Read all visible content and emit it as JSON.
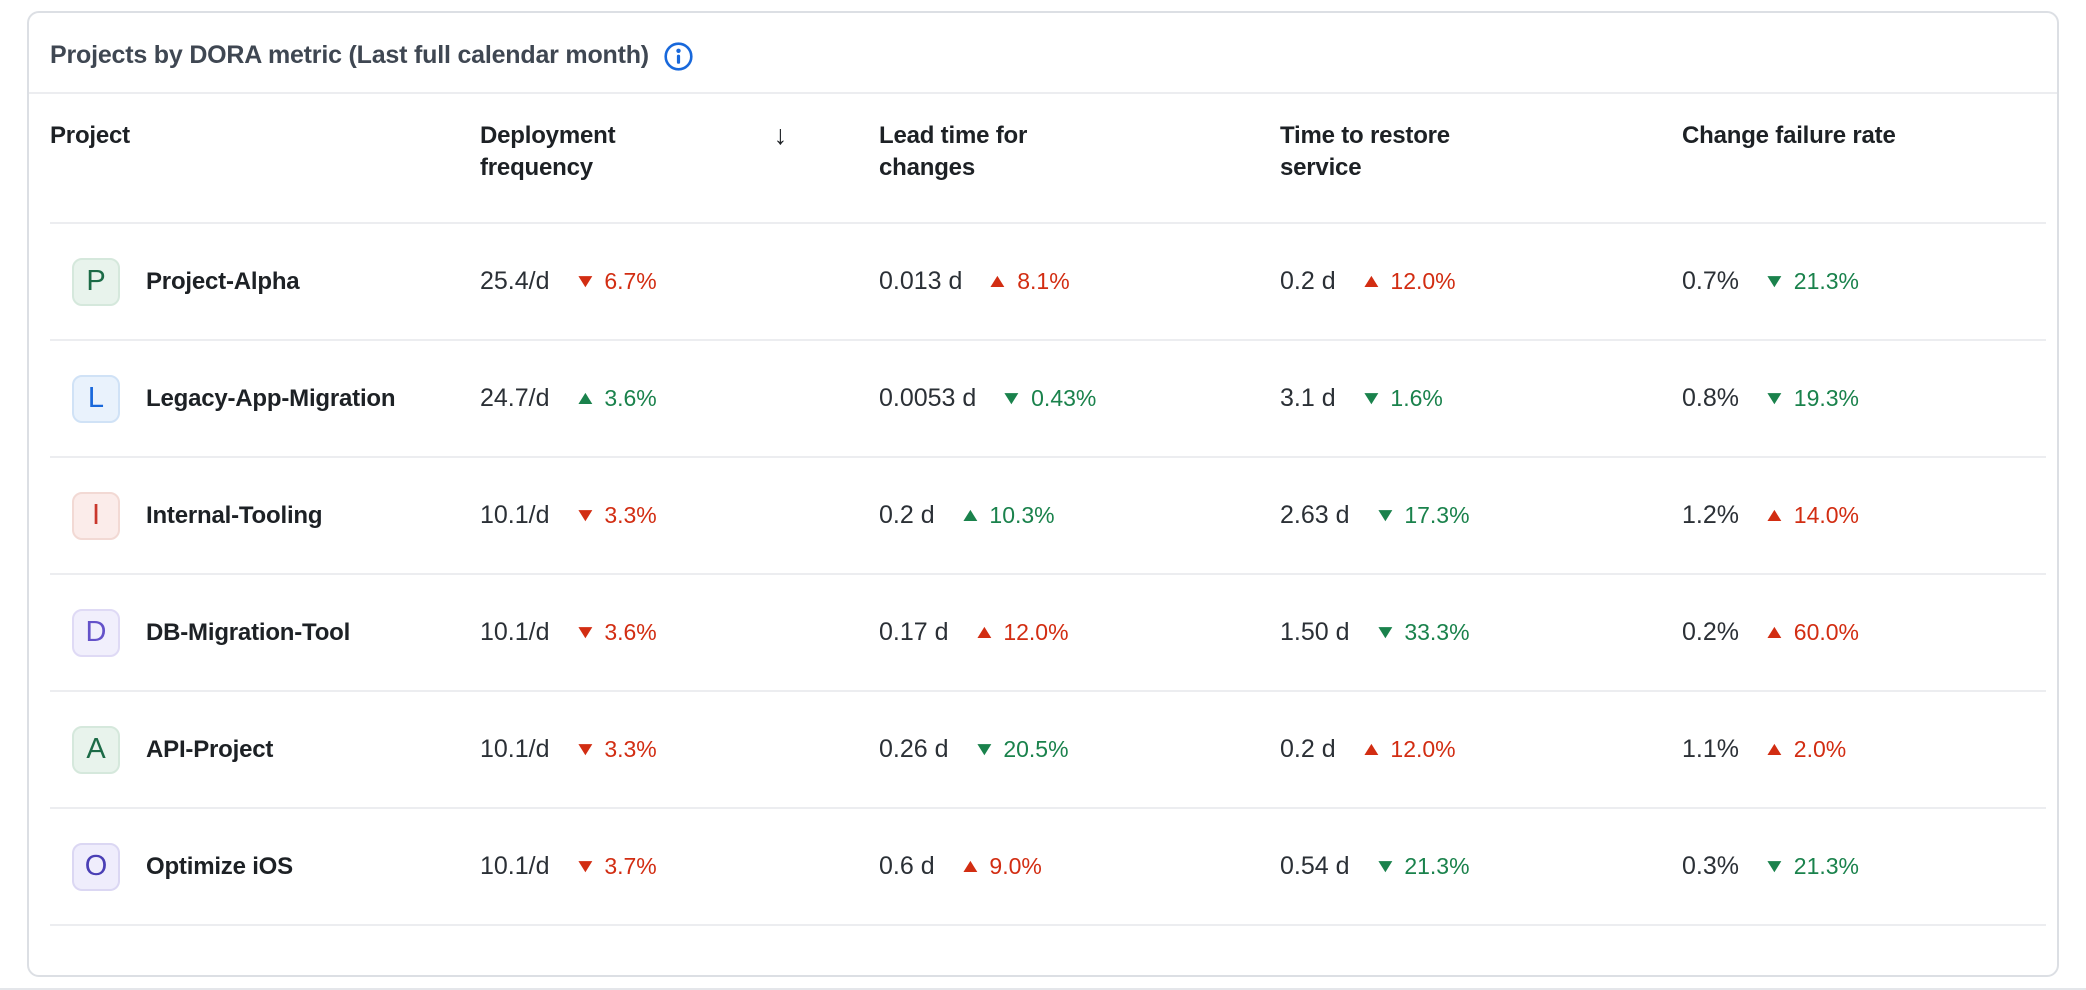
{
  "card": {
    "title": "Projects by DORA metric (Last full calendar month)"
  },
  "colors": {
    "positive": "#1A824C",
    "negative": "#D22D12",
    "info_icon": "#1868DB"
  },
  "table": {
    "sort_icon": "↓",
    "columns": [
      {
        "id": "project",
        "label": "Project"
      },
      {
        "id": "deployment_frequency",
        "label": "Deployment frequency",
        "sort": "desc"
      },
      {
        "id": "lead_time_for_changes",
        "label": "Lead time for changes"
      },
      {
        "id": "time_to_restore_service",
        "label": "Time to restore service"
      },
      {
        "id": "change_failure_rate",
        "label": "Change failure rate"
      }
    ],
    "rows": [
      {
        "project": {
          "initial": "P",
          "name": "Project-Alpha",
          "badge": {
            "bg": "#E8F3EC",
            "border": "#D5E8DC",
            "text": "#1C6B47"
          }
        },
        "metrics": [
          {
            "value": "25.4/d",
            "trend": "down",
            "delta": "6.7%",
            "sentiment": "negative"
          },
          {
            "value": "0.013 d",
            "trend": "up",
            "delta": "8.1%",
            "sentiment": "negative"
          },
          {
            "value": "0.2 d",
            "trend": "up",
            "delta": "12.0%",
            "sentiment": "negative"
          },
          {
            "value": "0.7%",
            "trend": "down",
            "delta": "21.3%",
            "sentiment": "positive"
          }
        ]
      },
      {
        "project": {
          "initial": "L",
          "name": "Legacy-App-Migration",
          "badge": {
            "bg": "#E9F2FC",
            "border": "#D0E2F6",
            "text": "#1868DB"
          }
        },
        "metrics": [
          {
            "value": "24.7/d",
            "trend": "up",
            "delta": "3.6%",
            "sentiment": "positive"
          },
          {
            "value": "0.0053 d",
            "trend": "down",
            "delta": "0.43%",
            "sentiment": "positive"
          },
          {
            "value": "3.1 d",
            "trend": "down",
            "delta": "1.6%",
            "sentiment": "positive"
          },
          {
            "value": "0.8%",
            "trend": "down",
            "delta": "19.3%",
            "sentiment": "positive"
          }
        ]
      },
      {
        "project": {
          "initial": "I",
          "name": "Internal-Tooling",
          "badge": {
            "bg": "#FBECEA",
            "border": "#F2D9D4",
            "text": "#C9372C"
          }
        },
        "metrics": [
          {
            "value": "10.1/d",
            "trend": "down",
            "delta": "3.3%",
            "sentiment": "negative"
          },
          {
            "value": "0.2 d",
            "trend": "up",
            "delta": "10.3%",
            "sentiment": "positive"
          },
          {
            "value": "2.63 d",
            "trend": "down",
            "delta": "17.3%",
            "sentiment": "positive"
          },
          {
            "value": "1.2%",
            "trend": "up",
            "delta": "14.0%",
            "sentiment": "negative"
          }
        ]
      },
      {
        "project": {
          "initial": "D",
          "name": "DB-Migration-Tool",
          "badge": {
            "bg": "#F1EFFC",
            "border": "#DFDAF5",
            "text": "#6452C9"
          }
        },
        "metrics": [
          {
            "value": "10.1/d",
            "trend": "down",
            "delta": "3.6%",
            "sentiment": "negative"
          },
          {
            "value": "0.17 d",
            "trend": "up",
            "delta": "12.0%",
            "sentiment": "negative"
          },
          {
            "value": "1.50 d",
            "trend": "down",
            "delta": "33.3%",
            "sentiment": "positive"
          },
          {
            "value": "0.2%",
            "trend": "up",
            "delta": "60.0%",
            "sentiment": "negative"
          }
        ]
      },
      {
        "project": {
          "initial": "A",
          "name": "API-Project",
          "badge": {
            "bg": "#E8F3EC",
            "border": "#D5E8DC",
            "text": "#1C6B47"
          }
        },
        "metrics": [
          {
            "value": "10.1/d",
            "trend": "down",
            "delta": "3.3%",
            "sentiment": "negative"
          },
          {
            "value": "0.26 d",
            "trend": "down",
            "delta": "20.5%",
            "sentiment": "positive"
          },
          {
            "value": "0.2 d",
            "trend": "up",
            "delta": "12.0%",
            "sentiment": "negative"
          },
          {
            "value": "1.1%",
            "trend": "up",
            "delta": "2.0%",
            "sentiment": "negative"
          }
        ]
      },
      {
        "project": {
          "initial": "O",
          "name": "Optimize iOS",
          "badge": {
            "bg": "#EFEDFC",
            "border": "#DBD7F3",
            "text": "#4A3FB5"
          }
        },
        "metrics": [
          {
            "value": "10.1/d",
            "trend": "down",
            "delta": "3.7%",
            "sentiment": "negative"
          },
          {
            "value": "0.6 d",
            "trend": "up",
            "delta": "9.0%",
            "sentiment": "negative"
          },
          {
            "value": "0.54 d",
            "trend": "down",
            "delta": "21.3%",
            "sentiment": "positive"
          },
          {
            "value": "0.3%",
            "trend": "down",
            "delta": "21.3%",
            "sentiment": "positive"
          }
        ]
      }
    ]
  }
}
